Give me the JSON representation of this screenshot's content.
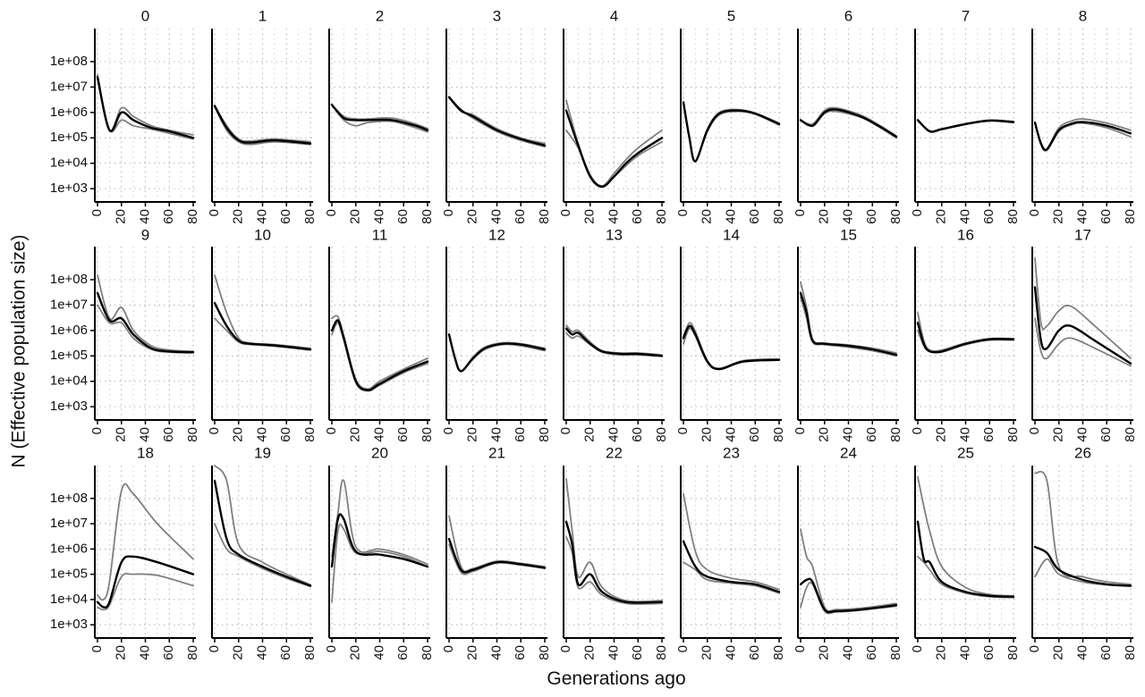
{
  "chart_data": {
    "type": "line",
    "xlabel": "Generations ago",
    "ylabel": "N (Effective population size)",
    "y_scale": "log10",
    "ylim": [
      300,
      2000000000
    ],
    "xlim": [
      0,
      80
    ],
    "x_ticks": [
      0,
      20,
      40,
      60,
      80
    ],
    "y_ticks": [
      1000,
      10000,
      100000,
      1000000,
      10000000,
      100000000
    ],
    "y_tick_labels": [
      "1e+03",
      "1e+04",
      "1e+05",
      "1e+06",
      "1e+07",
      "1e+08"
    ],
    "grid": true,
    "colors": {
      "estimate": "#000000",
      "bounds": "#808080"
    },
    "panels": [
      {
        "label": "0",
        "x": [
          0,
          10,
          20,
          30,
          45,
          60,
          80
        ],
        "estimate": [
          25000000,
          200000,
          1000000,
          500000,
          250000,
          180000,
          100000
        ],
        "bounds": [
          [
            20000000,
            200000,
            500000,
            300000,
            220000,
            150000,
            90000
          ],
          [
            30000000,
            200000,
            1500000,
            700000,
            300000,
            200000,
            130000
          ]
        ]
      },
      {
        "label": "1",
        "x": [
          0,
          10,
          20,
          30,
          50,
          80
        ],
        "estimate": [
          1800000,
          250000,
          80000,
          65000,
          80000,
          60000
        ],
        "bounds": [
          [
            1700000,
            200000,
            70000,
            55000,
            70000,
            55000
          ],
          [
            1900000,
            300000,
            90000,
            75000,
            90000,
            70000
          ]
        ]
      },
      {
        "label": "2",
        "x": [
          0,
          10,
          20,
          30,
          50,
          70,
          80
        ],
        "estimate": [
          2000000,
          600000,
          500000,
          500000,
          500000,
          300000,
          200000
        ],
        "bounds": [
          [
            2000000,
            500000,
            300000,
            400000,
            450000,
            250000,
            170000
          ],
          [
            2000000,
            700000,
            550000,
            550000,
            600000,
            350000,
            230000
          ]
        ]
      },
      {
        "label": "3",
        "x": [
          0,
          10,
          20,
          40,
          60,
          80
        ],
        "estimate": [
          4000000,
          1200000,
          700000,
          200000,
          90000,
          50000
        ],
        "bounds": [
          [
            4000000,
            1300000,
            600000,
            180000,
            80000,
            45000
          ],
          [
            4000000,
            1100000,
            800000,
            230000,
            100000,
            60000
          ]
        ]
      },
      {
        "label": "4",
        "x": [
          0,
          10,
          20,
          30,
          40,
          50,
          60,
          80
        ],
        "estimate": [
          1200000,
          50000,
          3000,
          1200,
          3000,
          10000,
          25000,
          100000
        ],
        "bounds": [
          [
            200000,
            40000,
            3000,
            1200,
            3000,
            8000,
            20000,
            70000
          ],
          [
            3000000,
            60000,
            3500,
            1300,
            4000,
            14000,
            40000,
            200000
          ]
        ]
      },
      {
        "label": "5",
        "x": [
          0,
          5,
          10,
          20,
          30,
          45,
          60,
          80
        ],
        "estimate": [
          2500000,
          100000,
          12000,
          200000,
          900000,
          1200000,
          900000,
          350000
        ],
        "bounds": [
          [
            2500000,
            100000,
            12000,
            180000,
            800000,
            1100000,
            850000,
            320000
          ],
          [
            2500000,
            100000,
            12000,
            220000,
            1000000,
            1300000,
            950000,
            380000
          ]
        ]
      },
      {
        "label": "6",
        "x": [
          0,
          10,
          20,
          30,
          50,
          65,
          80
        ],
        "estimate": [
          500000,
          300000,
          1000000,
          1300000,
          700000,
          300000,
          110000
        ],
        "bounds": [
          [
            500000,
            300000,
            900000,
            1100000,
            650000,
            280000,
            100000
          ],
          [
            500000,
            350000,
            1200000,
            1500000,
            800000,
            330000,
            120000
          ]
        ]
      },
      {
        "label": "7",
        "x": [
          0,
          10,
          20,
          40,
          60,
          80
        ],
        "estimate": [
          500000,
          180000,
          220000,
          350000,
          480000,
          420000
        ],
        "bounds": [
          [
            500000,
            180000,
            210000,
            340000,
            460000,
            400000
          ],
          [
            500000,
            190000,
            230000,
            360000,
            500000,
            440000
          ]
        ]
      },
      {
        "label": "8",
        "x": [
          0,
          5,
          10,
          20,
          30,
          40,
          60,
          80
        ],
        "estimate": [
          400000,
          60000,
          35000,
          200000,
          350000,
          420000,
          300000,
          150000
        ],
        "bounds": [
          [
            400000,
            55000,
            33000,
            180000,
            320000,
            380000,
            250000,
            110000
          ],
          [
            400000,
            65000,
            38000,
            250000,
            450000,
            550000,
            380000,
            200000
          ]
        ]
      },
      {
        "label": "9",
        "x": [
          0,
          10,
          20,
          30,
          45,
          60,
          80
        ],
        "estimate": [
          30000000,
          2500000,
          3000000,
          700000,
          200000,
          150000,
          140000
        ],
        "bounds": [
          [
            10000000,
            2000000,
            2000000,
            500000,
            180000,
            140000,
            130000
          ],
          [
            150000000,
            3000000,
            8000000,
            1000000,
            250000,
            170000,
            150000
          ]
        ]
      },
      {
        "label": "10",
        "x": [
          0,
          10,
          20,
          30,
          50,
          80
        ],
        "estimate": [
          12000000,
          1500000,
          400000,
          300000,
          260000,
          180000
        ],
        "bounds": [
          [
            3000000,
            1000000,
            350000,
            280000,
            240000,
            170000
          ],
          [
            150000000,
            5000000,
            500000,
            320000,
            280000,
            200000
          ]
        ]
      },
      {
        "label": "11",
        "x": [
          0,
          5,
          10,
          20,
          30,
          40,
          60,
          80
        ],
        "estimate": [
          1000000,
          2500000,
          500000,
          10000,
          4500,
          8000,
          25000,
          60000
        ],
        "bounds": [
          [
            700000,
            2000000,
            400000,
            9000,
            4200,
            7000,
            22000,
            50000
          ],
          [
            3000000,
            3500000,
            600000,
            12000,
            5000,
            10000,
            30000,
            80000
          ]
        ]
      },
      {
        "label": "12",
        "x": [
          0,
          5,
          10,
          20,
          30,
          45,
          60,
          80
        ],
        "estimate": [
          700000,
          80000,
          25000,
          80000,
          200000,
          300000,
          280000,
          180000
        ],
        "bounds": [
          [
            700000,
            80000,
            25000,
            75000,
            180000,
            280000,
            250000,
            160000
          ],
          [
            700000,
            80000,
            25000,
            90000,
            220000,
            330000,
            300000,
            200000
          ]
        ]
      },
      {
        "label": "13",
        "x": [
          0,
          5,
          10,
          20,
          30,
          45,
          60,
          80
        ],
        "estimate": [
          1200000,
          700000,
          800000,
          300000,
          150000,
          120000,
          120000,
          100000
        ],
        "bounds": [
          [
            800000,
            500000,
            600000,
            280000,
            140000,
            110000,
            110000,
            95000
          ],
          [
            1600000,
            900000,
            1000000,
            350000,
            160000,
            130000,
            130000,
            110000
          ]
        ]
      },
      {
        "label": "14",
        "x": [
          0,
          5,
          10,
          20,
          30,
          50,
          80
        ],
        "estimate": [
          500000,
          1500000,
          700000,
          60000,
          30000,
          60000,
          70000
        ],
        "bounds": [
          [
            300000,
            1200000,
            600000,
            55000,
            30000,
            58000,
            68000
          ],
          [
            600000,
            2000000,
            900000,
            65000,
            32000,
            65000,
            75000
          ]
        ]
      },
      {
        "label": "15",
        "x": [
          0,
          5,
          10,
          20,
          40,
          60,
          80
        ],
        "estimate": [
          30000000,
          5000000,
          400000,
          300000,
          250000,
          180000,
          110000
        ],
        "bounds": [
          [
            20000000,
            3000000,
            350000,
            280000,
            220000,
            160000,
            100000
          ],
          [
            80000000,
            8000000,
            450000,
            320000,
            270000,
            200000,
            130000
          ]
        ]
      },
      {
        "label": "16",
        "x": [
          0,
          5,
          10,
          20,
          40,
          60,
          80
        ],
        "estimate": [
          2000000,
          300000,
          150000,
          150000,
          300000,
          450000,
          450000
        ],
        "bounds": [
          [
            1000000,
            250000,
            150000,
            140000,
            280000,
            420000,
            420000
          ],
          [
            5000000,
            400000,
            170000,
            170000,
            320000,
            480000,
            480000
          ]
        ]
      },
      {
        "label": "17",
        "x": [
          0,
          5,
          10,
          20,
          30,
          50,
          80
        ],
        "estimate": [
          50000000,
          400000,
          200000,
          1000000,
          1500000,
          400000,
          50000
        ],
        "bounds": [
          [
            3000000,
            150000,
            80000,
            300000,
            500000,
            200000,
            40000
          ],
          [
            700000000,
            2000000,
            1500000,
            6000000,
            9000000,
            1500000,
            80000
          ]
        ]
      },
      {
        "label": "18",
        "x": [
          0,
          5,
          10,
          20,
          30,
          50,
          80
        ],
        "estimate": [
          8000,
          5000,
          8000,
          300000,
          500000,
          300000,
          100000
        ],
        "bounds": [
          [
            5000,
            4000,
            6000,
            80000,
            100000,
            90000,
            35000
          ],
          [
            15000,
            10000,
            50000,
            200000000,
            150000000,
            10000000,
            400000
          ]
        ]
      },
      {
        "label": "19",
        "x": [
          0,
          10,
          20,
          40,
          60,
          80
        ],
        "estimate": [
          500000000,
          2500000,
          600000,
          200000,
          80000,
          35000
        ],
        "bounds": [
          [
            10000000,
            1000000,
            500000,
            170000,
            70000,
            33000
          ],
          [
            2000000000,
            500000000,
            1500000,
            300000,
            100000,
            38000
          ]
        ]
      },
      {
        "label": "20",
        "x": [
          0,
          5,
          10,
          20,
          40,
          60,
          80
        ],
        "estimate": [
          200000,
          15000000,
          15000000,
          800000,
          600000,
          400000,
          200000
        ],
        "bounds": [
          [
            8000,
            5000000,
            6000000,
            700000,
            800000,
            500000,
            200000
          ],
          [
            500000,
            25000000,
            500000000,
            1200000,
            1000000,
            600000,
            250000
          ]
        ]
      },
      {
        "label": "21",
        "x": [
          0,
          10,
          20,
          40,
          60,
          80
        ],
        "estimate": [
          2500000,
          150000,
          150000,
          300000,
          250000,
          180000
        ],
        "bounds": [
          [
            1500000,
            120000,
            130000,
            280000,
            230000,
            170000
          ],
          [
            20000000,
            200000,
            170000,
            330000,
            270000,
            200000
          ]
        ]
      },
      {
        "label": "22",
        "x": [
          0,
          5,
          10,
          20,
          30,
          50,
          80
        ],
        "estimate": [
          12000000,
          1500000,
          40000,
          100000,
          20000,
          8000,
          8000
        ],
        "bounds": [
          [
            3000000,
            700000,
            30000,
            50000,
            15000,
            7000,
            7000
          ],
          [
            600000000,
            5000000,
            80000,
            300000,
            30000,
            9000,
            9000
          ]
        ]
      },
      {
        "label": "23",
        "x": [
          0,
          10,
          20,
          40,
          60,
          80
        ],
        "estimate": [
          2000000,
          200000,
          80000,
          50000,
          40000,
          20000
        ],
        "bounds": [
          [
            300000,
            150000,
            60000,
            45000,
            35000,
            18000
          ],
          [
            150000000,
            800000,
            150000,
            70000,
            50000,
            25000
          ]
        ]
      },
      {
        "label": "24",
        "x": [
          0,
          5,
          10,
          20,
          30,
          50,
          80
        ],
        "estimate": [
          40000,
          60000,
          50000,
          4000,
          3500,
          4000,
          6000
        ],
        "bounds": [
          [
            5000,
            30000,
            40000,
            3500,
            3200,
            3800,
            5500
          ],
          [
            6000000,
            500000,
            200000,
            5000,
            4000,
            4500,
            7000
          ]
        ]
      },
      {
        "label": "25",
        "x": [
          0,
          5,
          10,
          20,
          40,
          60,
          80
        ],
        "estimate": [
          12000000,
          400000,
          300000,
          50000,
          20000,
          14000,
          13000
        ],
        "bounds": [
          [
            500000,
            300000,
            150000,
            40000,
            18000,
            13000,
            12000
          ],
          [
            700000000,
            50000000,
            5000000,
            200000,
            30000,
            16000,
            14000
          ]
        ]
      },
      {
        "label": "26",
        "x": [
          0,
          10,
          20,
          40,
          60,
          80
        ],
        "estimate": [
          1200000,
          700000,
          150000,
          60000,
          40000,
          35000
        ],
        "bounds": [
          [
            80000,
            400000,
            100000,
            50000,
            38000,
            34000
          ],
          [
            1000000000,
            500000000,
            200000,
            80000,
            50000,
            40000
          ]
        ]
      }
    ]
  }
}
